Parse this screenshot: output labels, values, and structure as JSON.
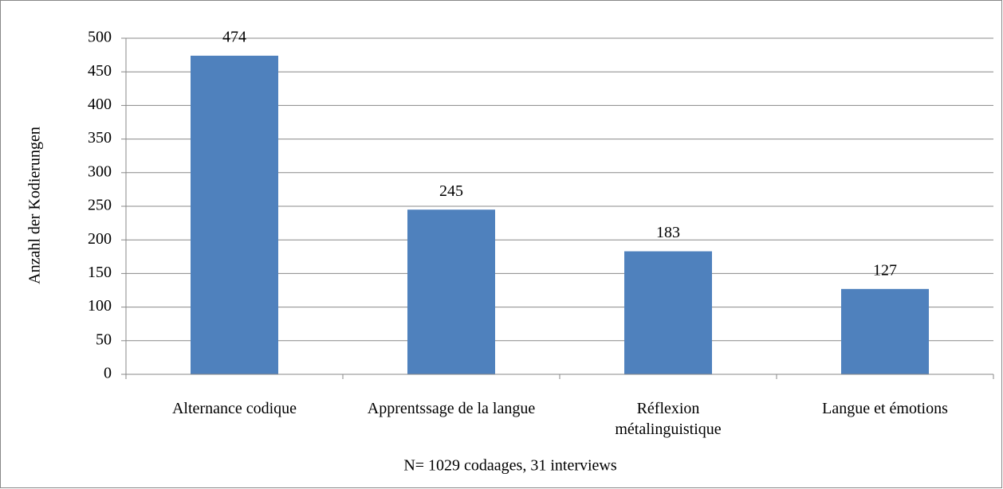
{
  "chart_data": {
    "type": "bar",
    "categories": [
      "Alternance codique",
      "Apprentssage de la langue",
      "Réflexion métalinguistique",
      "Langue et émotions"
    ],
    "values": [
      474,
      245,
      183,
      127
    ],
    "color": "#4f81bd",
    "ylabel": "Anzahl der Kodierungen",
    "xlabel": "N= 1029 codaages, 31 interviews",
    "ylim": [
      0,
      500
    ],
    "yticks": [
      0,
      50,
      100,
      150,
      200,
      250,
      300,
      350,
      400,
      450,
      500
    ],
    "grid": true
  }
}
